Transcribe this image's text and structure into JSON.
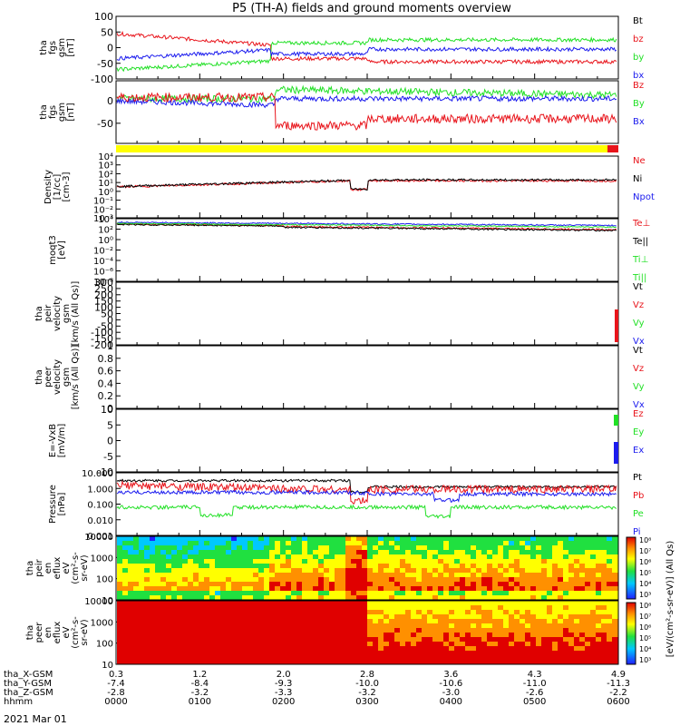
{
  "title": "P5 (TH-A) fields and ground moments overview",
  "footer_date": "2021 Mar 01",
  "colors": {
    "black": "#000000",
    "red": "#e8141b",
    "green": "#22e026",
    "blue": "#1c1cee",
    "yellow": "#ffff00"
  },
  "chart_data": [
    {
      "type": "line",
      "id": "fgs_gsm",
      "ylabel_lines": [
        "tha",
        "fgs",
        "gsm",
        "[nT]"
      ],
      "ylim": [
        -100,
        100
      ],
      "yticks": [
        100,
        50,
        0,
        -50,
        -100
      ],
      "legend": [
        {
          "label": "Bt",
          "color": "black"
        },
        {
          "label": "bz",
          "color": "red"
        },
        {
          "label": "by",
          "color": "green"
        },
        {
          "label": "bx",
          "color": "blue"
        }
      ]
    },
    {
      "type": "line",
      "id": "fgs_dsl",
      "ylabel_lines": [
        "tha",
        "fgs",
        "gsm",
        "[nT]"
      ],
      "ylim": [
        -95,
        45
      ],
      "yticks": [
        50,
        0,
        -50
      ],
      "legend": [
        {
          "label": "Bz",
          "color": "red"
        },
        {
          "label": "By",
          "color": "green"
        },
        {
          "label": "Bx",
          "color": "blue"
        }
      ]
    },
    {
      "type": "line",
      "id": "density",
      "ylabel_lines": [
        "Density",
        "[1/cc]",
        "[cm-3]"
      ],
      "ylim_log": [
        -3,
        4
      ],
      "ytick_labels": [
        "10⁴",
        "10³",
        "10²",
        "10¹",
        "10⁰",
        "10⁻¹",
        "10⁻²",
        "10⁻³"
      ],
      "legend": [
        {
          "label": "Ne",
          "color": "red"
        },
        {
          "label": "Ni",
          "color": "black"
        },
        {
          "label": "Npot",
          "color": "blue"
        }
      ]
    },
    {
      "type": "line",
      "id": "temperature",
      "ylabel_lines": [
        "moqt3",
        "[eV]"
      ],
      "ylim_log": [
        -8,
        4
      ],
      "ytick_labels": [
        "10⁴",
        "10²",
        "10⁰",
        "10⁻²",
        "10⁻⁴",
        "10⁻⁶",
        "10⁻⁸"
      ],
      "legend": [
        {
          "label": "Te⊥",
          "color": "red"
        },
        {
          "label": "Te||",
          "color": "black"
        },
        {
          "label": "Ti⊥",
          "color": "green"
        },
        {
          "label": "Ti||",
          "color": "green"
        }
      ]
    },
    {
      "type": "line",
      "id": "peir_velocity",
      "ylabel_lines": [
        "tha",
        "peir",
        "velocity",
        "gsm",
        "[km/s (All Qs)]"
      ],
      "ylim": [
        -200,
        300
      ],
      "yticks": [
        300,
        250,
        200,
        150,
        100,
        50,
        0,
        -50,
        -100,
        -150,
        -200
      ],
      "legend": [
        {
          "label": "Vt",
          "color": "black"
        },
        {
          "label": "Vz",
          "color": "red"
        },
        {
          "label": "Vy",
          "color": "green"
        },
        {
          "label": "Vx",
          "color": "blue"
        }
      ]
    },
    {
      "type": "line",
      "id": "peer_velocity",
      "ylabel_lines": [
        "tha",
        "peer",
        "velocity",
        "gsm",
        "[km/s (All Qs)]"
      ],
      "ylim": [
        0.0,
        1.0
      ],
      "yticks": [
        1.0,
        0.8,
        0.6,
        0.4,
        0.2,
        0.0
      ],
      "legend": [
        {
          "label": "Vt",
          "color": "black"
        },
        {
          "label": "Vz",
          "color": "red"
        },
        {
          "label": "Vy",
          "color": "green"
        },
        {
          "label": "Vx",
          "color": "blue"
        }
      ]
    },
    {
      "type": "line",
      "id": "efield",
      "ylabel_lines": [
        "E=-VxB",
        "[mV/m]"
      ],
      "ylim": [
        -10,
        10
      ],
      "yticks": [
        10,
        5,
        0,
        -5,
        -10
      ],
      "legend": [
        {
          "label": "Ez",
          "color": "red"
        },
        {
          "label": "Ey",
          "color": "green"
        },
        {
          "label": "Ex",
          "color": "blue"
        }
      ]
    },
    {
      "type": "line",
      "id": "pressure",
      "ylabel_lines": [
        "Pressure",
        "[nPa]"
      ],
      "ylim_log": [
        -3,
        1
      ],
      "ytick_labels": [
        "10.000",
        "1.000",
        "0.100",
        "0.010",
        "0.001"
      ],
      "legend": [
        {
          "label": "Pt",
          "color": "black"
        },
        {
          "label": "Pb",
          "color": "red"
        },
        {
          "label": "Pe",
          "color": "green"
        },
        {
          "label": "Pi",
          "color": "blue"
        }
      ]
    },
    {
      "type": "heatmap",
      "id": "peir_spec",
      "ylabel_lines": [
        "tha",
        "peir",
        "en",
        "eflux",
        "eV",
        "(cm²-s-",
        "sr-eV)"
      ],
      "ytick_labels": [
        "10000",
        "1000",
        "100",
        "10"
      ]
    },
    {
      "type": "heatmap",
      "id": "peer_spec",
      "ylabel_lines": [
        "tha",
        "peer",
        "en",
        "eflux",
        "eV",
        "(cm²-s-",
        "sr-eV)"
      ],
      "ytick_labels": [
        "10000",
        "1000",
        "100",
        "10"
      ]
    }
  ],
  "colorbar": {
    "upper_labels": [
      "10⁸",
      "10⁷",
      "10⁶",
      "10⁵",
      "10⁴",
      "10³"
    ],
    "lower_labels": [
      "10⁸",
      "10⁷",
      "10⁶",
      "10⁵",
      "10⁴",
      "10³"
    ],
    "title": "[eV/(cm²-s-sr-eV)] (All Qs)"
  },
  "x_axis": {
    "tick_hours": [
      0,
      1,
      2,
      3,
      4,
      5,
      6
    ],
    "rows": [
      {
        "label": "tha_X-GSM",
        "values": [
          "0.3",
          "1.2",
          "2.0",
          "2.8",
          "3.6",
          "4.3",
          "4.9"
        ]
      },
      {
        "label": "tha_Y-GSM",
        "values": [
          "-7.4",
          "-8.4",
          "-9.3",
          "-10.0",
          "-10.6",
          "-11.0",
          "-11.3"
        ]
      },
      {
        "label": "tha_Z-GSM",
        "values": [
          "-2.8",
          "-3.2",
          "-3.3",
          "-3.2",
          "-3.0",
          "-2.6",
          "-2.2"
        ]
      },
      {
        "label": "hhmm",
        "values": [
          "0000",
          "0100",
          "0200",
          "0300",
          "0400",
          "0500",
          "0600"
        ]
      }
    ]
  }
}
